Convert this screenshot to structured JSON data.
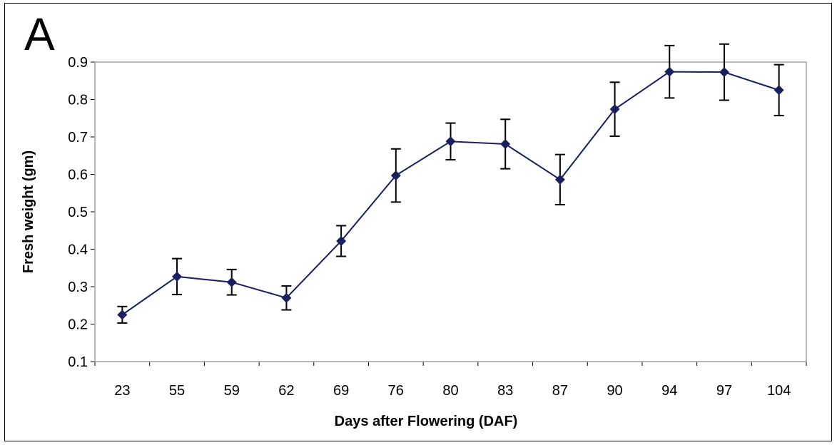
{
  "panel_label": "A",
  "chart_data": {
    "type": "line",
    "title": "",
    "xlabel": "Days after Flowering (DAF)",
    "ylabel": "Fresh weight (gm)",
    "ylim": [
      0.1,
      0.9
    ],
    "yticks": [
      "0.1",
      "0.2",
      "0.3",
      "0.4",
      "0.5",
      "0.6",
      "0.7",
      "0.8",
      "0.9"
    ],
    "categories": [
      "23",
      "55",
      "59",
      "62",
      "69",
      "76",
      "80",
      "83",
      "87",
      "90",
      "94",
      "97",
      "104"
    ],
    "series": [
      {
        "values": [
          0.225,
          0.327,
          0.312,
          0.27,
          0.422,
          0.597,
          0.688,
          0.681,
          0.586,
          0.774,
          0.874,
          0.873,
          0.825
        ],
        "error": [
          0.022,
          0.048,
          0.034,
          0.032,
          0.041,
          0.071,
          0.049,
          0.066,
          0.067,
          0.072,
          0.07,
          0.075,
          0.068
        ],
        "color": "#1a1f5e",
        "marker": "diamond"
      }
    ],
    "grid": false,
    "plot_border_color": "#a0a0a0"
  }
}
